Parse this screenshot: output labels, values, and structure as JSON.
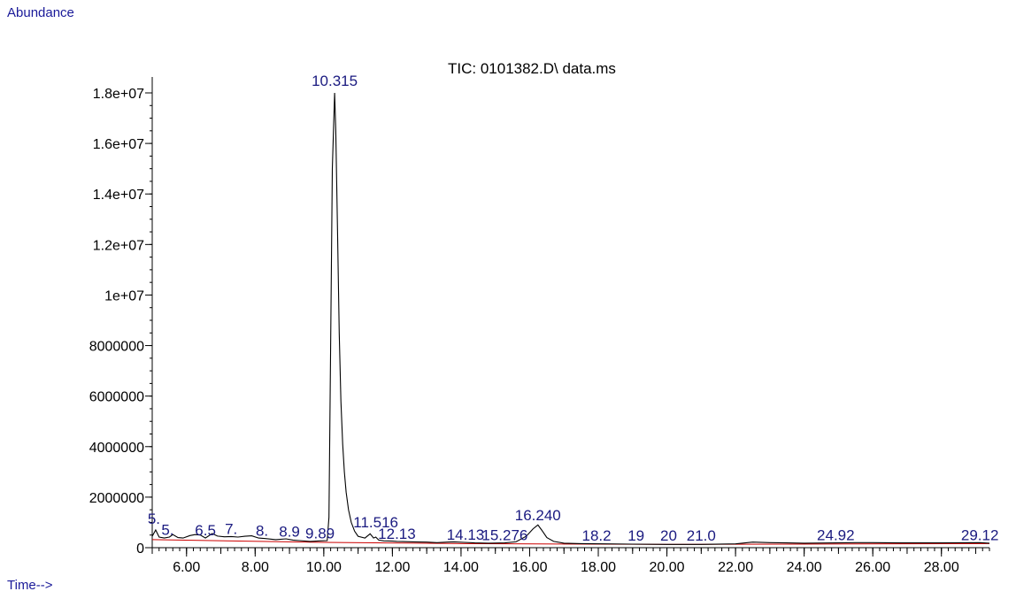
{
  "chart_data": {
    "type": "line",
    "title": "TIC: 0101382.D\\ data.ms",
    "ylabel": "Abundance",
    "xlabel": "Time-->",
    "xlim": [
      5.0,
      29.4
    ],
    "ylim": [
      0,
      18000000
    ],
    "x_ticks": [
      6,
      8,
      10,
      12,
      14,
      16,
      18,
      20,
      22,
      24,
      26,
      28
    ],
    "x_tick_labels": [
      "6.00",
      "8.00",
      "10.00",
      "12.00",
      "14.00",
      "16.00",
      "18.00",
      "20.00",
      "22.00",
      "24.00",
      "26.00",
      "28.00"
    ],
    "y_ticks": [
      0,
      2000000,
      4000000,
      6000000,
      8000000,
      10000000,
      12000000,
      14000000,
      16000000,
      18000000
    ],
    "y_tick_labels": [
      "0",
      "2000000",
      "4000000",
      "6000000",
      "8000000",
      "1e+07",
      "1.2e+07",
      "1.4e+07",
      "1.6e+07",
      "1.8e+07"
    ],
    "series": [
      {
        "color": "#000000",
        "x": [
          5.0,
          5.1,
          5.2,
          5.35,
          5.5,
          5.6,
          5.75,
          5.9,
          6.1,
          6.25,
          6.4,
          6.55,
          6.75,
          6.9,
          7.1,
          7.3,
          7.5,
          7.7,
          7.9,
          8.1,
          8.3,
          8.6,
          8.9,
          9.1,
          9.3,
          9.6,
          9.89,
          10.1,
          10.15,
          10.2,
          10.25,
          10.315,
          10.35,
          10.4,
          10.45,
          10.5,
          10.55,
          10.6,
          10.65,
          10.72,
          10.8,
          10.9,
          11.0,
          11.2,
          11.35,
          11.45,
          11.516,
          11.6,
          11.75,
          12.0,
          12.13,
          12.3,
          12.6,
          13.0,
          13.3,
          13.6,
          13.8,
          14.1,
          14.4,
          14.8,
          15.276,
          15.6,
          15.9,
          16.1,
          16.24,
          16.35,
          16.5,
          16.7,
          17.0,
          17.5,
          18.2,
          19.0,
          20.0,
          21.0,
          22.0,
          22.5,
          23.0,
          24.0,
          24.92,
          25.5,
          26.0,
          27.0,
          28.0,
          29.12,
          29.4
        ],
        "y": [
          450000,
          700000,
          420000,
          380000,
          420000,
          520000,
          400000,
          380000,
          480000,
          520000,
          500000,
          380000,
          560000,
          460000,
          430000,
          440000,
          420000,
          450000,
          470000,
          380000,
          360000,
          320000,
          350000,
          300000,
          280000,
          250000,
          270000,
          280000,
          1200000,
          8000000,
          15000000,
          18000000,
          16500000,
          12500000,
          8500000,
          5800000,
          4100000,
          3000000,
          2200000,
          1500000,
          1000000,
          650000,
          450000,
          380000,
          550000,
          380000,
          420000,
          300000,
          270000,
          260000,
          250000,
          240000,
          230000,
          220000,
          200000,
          220000,
          230000,
          210000,
          190000,
          180000,
          190000,
          230000,
          450000,
          750000,
          900000,
          700000,
          400000,
          250000,
          180000,
          160000,
          150000,
          140000,
          130000,
          130000,
          150000,
          220000,
          200000,
          180000,
          190000,
          200000,
          200000,
          190000,
          190000,
          200000,
          180000
        ]
      },
      {
        "color": "#cc0000",
        "x": [
          5.0,
          10.0,
          14.0,
          20.0,
          29.4
        ],
        "y": [
          320000,
          210000,
          160000,
          130000,
          160000
        ]
      }
    ],
    "peak_labels": [
      {
        "x": 10.315,
        "text": "10.315"
      },
      {
        "x": 16.24,
        "text": "16.240"
      },
      {
        "x": 11.516,
        "text": "11.516"
      },
      {
        "x": 5.05,
        "text": "5."
      },
      {
        "x": 5.45,
        "text": "5."
      },
      {
        "x": 6.55,
        "text": "6.5"
      },
      {
        "x": 7.3,
        "text": "7."
      },
      {
        "x": 8.2,
        "text": "8."
      },
      {
        "x": 9.0,
        "text": "8.9"
      },
      {
        "x": 9.89,
        "text": "9.89"
      },
      {
        "x": 12.13,
        "text": "12.13"
      },
      {
        "x": 14.13,
        "text": "14.13"
      },
      {
        "x": 15.276,
        "text": "15.276"
      },
      {
        "x": 17.95,
        "text": "18.2"
      },
      {
        "x": 19.1,
        "text": "19"
      },
      {
        "x": 20.05,
        "text": "20"
      },
      {
        "x": 21.0,
        "text": "21.0"
      },
      {
        "x": 24.92,
        "text": "24.92"
      },
      {
        "x": 29.12,
        "text": "29.12"
      }
    ]
  }
}
